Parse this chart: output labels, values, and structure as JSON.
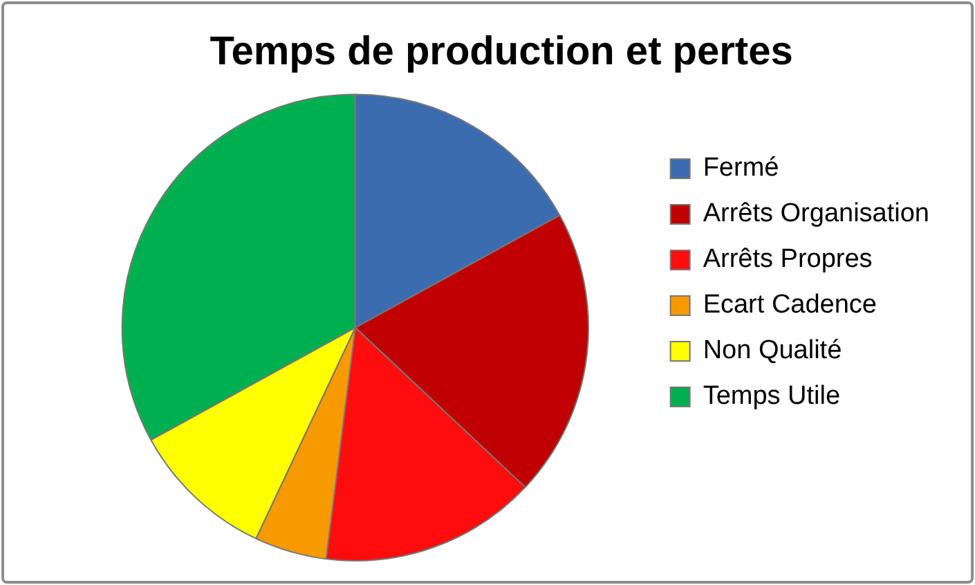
{
  "chart_data": {
    "type": "pie",
    "title": "Temps de production et pertes",
    "categories": [
      "Fermé",
      "Arrêts Organisation",
      "Arrêts Propres",
      "Ecart Cadence",
      "Non Qualité",
      "Temps Utile"
    ],
    "values": [
      17,
      20,
      15,
      5,
      10,
      33
    ],
    "colors": [
      "#3b6cb0",
      "#c00000",
      "#ff0d0d",
      "#f79a00",
      "#ffff00",
      "#00b050"
    ],
    "legend": "right"
  }
}
